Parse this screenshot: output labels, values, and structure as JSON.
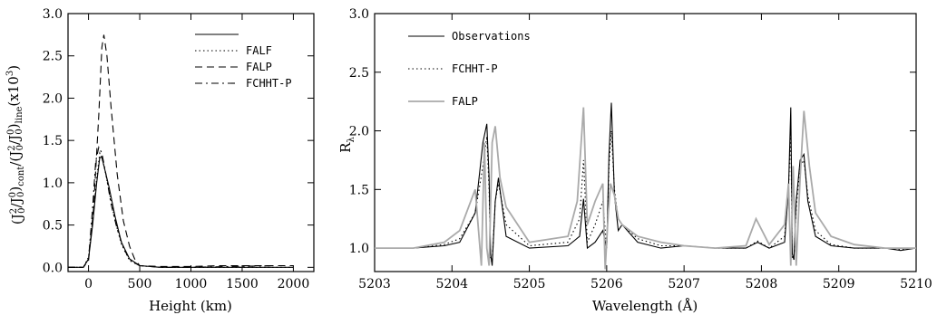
{
  "chart_data": [
    {
      "type": "line",
      "xlabel": "Height (km)",
      "ylabel_parts": [
        "(J",
        "2",
        "0",
        "/J",
        "0",
        "0",
        ")",
        "cont",
        "/(J",
        "2",
        "0",
        "/J",
        "0",
        "0",
        ")",
        "line",
        "(x10",
        "3",
        ")"
      ],
      "xlim": [
        -200,
        2200
      ],
      "ylim": [
        -0.05,
        3.0
      ],
      "xticks": [
        0,
        500,
        1000,
        1500,
        2000
      ],
      "yticks": [
        0.0,
        0.5,
        1.0,
        1.5,
        2.0,
        2.5,
        3.0
      ],
      "ytick_labels": [
        "0.0",
        "0.5",
        "1.0",
        "1.5",
        "2.0",
        "2.5",
        "3.0"
      ],
      "legend_position": "top-right",
      "series": [
        {
          "name": "",
          "style": "solid",
          "x": [
            -200,
            -50,
            0,
            40,
            80,
            110,
            130,
            160,
            200,
            260,
            320,
            400,
            500,
            700,
            1000,
            1500,
            2000
          ],
          "y": [
            0.0,
            0.0,
            0.1,
            0.5,
            1.0,
            1.3,
            1.3,
            1.15,
            0.95,
            0.6,
            0.3,
            0.1,
            0.02,
            0.0,
            0.0,
            0.0,
            0.0
          ]
        },
        {
          "name": "FALF",
          "style": "dotted",
          "x": [
            -200,
            -50,
            0,
            40,
            80,
            110,
            130,
            160,
            200,
            260,
            320,
            400,
            500,
            700,
            1000,
            1500,
            2000
          ],
          "y": [
            0.0,
            0.0,
            0.12,
            0.55,
            1.05,
            1.35,
            1.3,
            1.15,
            0.9,
            0.55,
            0.28,
            0.08,
            0.02,
            0.0,
            0.0,
            0.0,
            0.0
          ]
        },
        {
          "name": "FALP",
          "style": "dashed",
          "x": [
            -200,
            -50,
            0,
            50,
            100,
            130,
            150,
            180,
            220,
            280,
            340,
            400,
            450,
            500,
            700,
            1000,
            1300,
            1600,
            2000
          ],
          "y": [
            0.0,
            0.0,
            0.08,
            0.7,
            1.8,
            2.6,
            2.75,
            2.5,
            1.9,
            1.1,
            0.55,
            0.25,
            0.1,
            0.02,
            0.01,
            0.01,
            0.02,
            0.02,
            0.02
          ]
        },
        {
          "name": "FCHHT-P",
          "style": "dashdot",
          "x": [
            -200,
            -50,
            0,
            40,
            70,
            100,
            130,
            170,
            220,
            280,
            350,
            420,
            500,
            700,
            1000,
            1400,
            1800
          ],
          "y": [
            0.0,
            0.0,
            0.1,
            0.7,
            1.25,
            1.42,
            1.35,
            1.1,
            0.75,
            0.45,
            0.2,
            0.07,
            0.02,
            0.0,
            0.0,
            0.01,
            0.02
          ]
        }
      ]
    },
    {
      "type": "line",
      "xlabel": "Wavelength (Å)",
      "ylabel": "R",
      "ylabel_sub": "λ",
      "xlim": [
        5203,
        5210
      ],
      "ylim": [
        0.8,
        3.0
      ],
      "xticks": [
        5203,
        5204,
        5205,
        5206,
        5207,
        5208,
        5209,
        5210
      ],
      "yticks": [
        1.0,
        1.5,
        2.0,
        2.5,
        3.0
      ],
      "ytick_labels": [
        "1.0",
        "1.5",
        "2.0",
        "2.5",
        "3.0"
      ],
      "legend_position": "top-left",
      "series": [
        {
          "name": "Observations",
          "style": "solid",
          "color": "#000000",
          "x": [
            5203,
            5203.5,
            5203.9,
            5204.1,
            5204.3,
            5204.4,
            5204.45,
            5204.48,
            5204.5,
            5204.52,
            5204.56,
            5204.6,
            5204.7,
            5205.0,
            5205.5,
            5205.65,
            5205.7,
            5205.75,
            5205.85,
            5205.95,
            5206.0,
            5206.03,
            5206.06,
            5206.1,
            5206.15,
            5206.2,
            5206.4,
            5206.7,
            5207.0,
            5207.4,
            5207.8,
            5207.95,
            5208.1,
            5208.3,
            5208.35,
            5208.38,
            5208.4,
            5208.42,
            5208.45,
            5208.5,
            5208.55,
            5208.6,
            5208.7,
            5208.9,
            5209.2,
            5209.6,
            5209.8,
            5210
          ],
          "y": [
            1.0,
            1.0,
            1.02,
            1.05,
            1.3,
            1.9,
            2.06,
            1.6,
            0.95,
            0.85,
            1.4,
            1.6,
            1.1,
            1.0,
            1.02,
            1.1,
            1.42,
            1.0,
            1.05,
            1.15,
            1.0,
            1.8,
            2.24,
            1.45,
            1.15,
            1.2,
            1.05,
            1.0,
            1.02,
            1.0,
            1.0,
            1.05,
            1.0,
            1.05,
            1.5,
            2.2,
            0.95,
            0.9,
            1.4,
            1.75,
            1.8,
            1.4,
            1.1,
            1.02,
            1.0,
            1.0,
            0.98,
            1.0
          ]
        },
        {
          "name": "FCHHT-P",
          "style": "dotted",
          "color": "#000000",
          "x": [
            5203,
            5203.5,
            5203.9,
            5204.1,
            5204.3,
            5204.4,
            5204.45,
            5204.48,
            5204.5,
            5204.52,
            5204.56,
            5204.6,
            5204.7,
            5205.0,
            5205.5,
            5205.65,
            5205.7,
            5205.75,
            5205.85,
            5205.95,
            5206.0,
            5206.03,
            5206.06,
            5206.1,
            5206.15,
            5206.2,
            5206.4,
            5206.7,
            5207.0,
            5207.4,
            5207.8,
            5207.95,
            5208.1,
            5208.3,
            5208.35,
            5208.38,
            5208.4,
            5208.42,
            5208.45,
            5208.5,
            5208.55,
            5208.6,
            5208.7,
            5208.9,
            5209.2,
            5209.6,
            5209.8,
            5210
          ],
          "y": [
            1.0,
            1.0,
            1.03,
            1.08,
            1.3,
            1.7,
            1.95,
            1.5,
            0.9,
            0.88,
            1.4,
            1.55,
            1.2,
            1.02,
            1.05,
            1.25,
            1.75,
            1.05,
            1.2,
            1.4,
            1.0,
            1.7,
            2.0,
            1.5,
            1.25,
            1.2,
            1.08,
            1.02,
            1.02,
            1.0,
            1.0,
            1.06,
            1.0,
            1.1,
            1.5,
            2.0,
            0.92,
            0.9,
            1.35,
            1.7,
            1.75,
            1.45,
            1.15,
            1.03,
            1.0,
            1.0,
            0.99,
            1.0
          ]
        },
        {
          "name": "FALP",
          "style": "solid",
          "color": "#aaaaaa",
          "x": [
            5203,
            5203.5,
            5203.9,
            5204.1,
            5204.3,
            5204.38,
            5204.42,
            5204.45,
            5204.48,
            5204.52,
            5204.56,
            5204.62,
            5204.7,
            5205.0,
            5205.5,
            5205.62,
            5205.7,
            5205.75,
            5205.85,
            5205.95,
            5205.98,
            5206.02,
            5206.05,
            5206.1,
            5206.15,
            5206.2,
            5206.4,
            5206.7,
            5207.0,
            5207.4,
            5207.8,
            5207.93,
            5208.1,
            5208.3,
            5208.35,
            5208.38,
            5208.41,
            5208.45,
            5208.5,
            5208.55,
            5208.62,
            5208.7,
            5208.9,
            5209.2,
            5209.6,
            5210
          ],
          "y": [
            1.0,
            1.0,
            1.05,
            1.15,
            1.5,
            0.85,
            1.9,
            1.0,
            0.85,
            1.9,
            2.04,
            1.6,
            1.35,
            1.05,
            1.1,
            1.4,
            2.2,
            1.2,
            1.4,
            1.55,
            0.82,
            1.3,
            1.55,
            1.45,
            1.25,
            1.2,
            1.1,
            1.05,
            1.02,
            1.0,
            1.02,
            1.25,
            1.03,
            1.2,
            1.55,
            0.85,
            1.7,
            0.85,
            1.6,
            2.17,
            1.7,
            1.3,
            1.1,
            1.03,
            1.0,
            1.0
          ]
        }
      ]
    }
  ]
}
